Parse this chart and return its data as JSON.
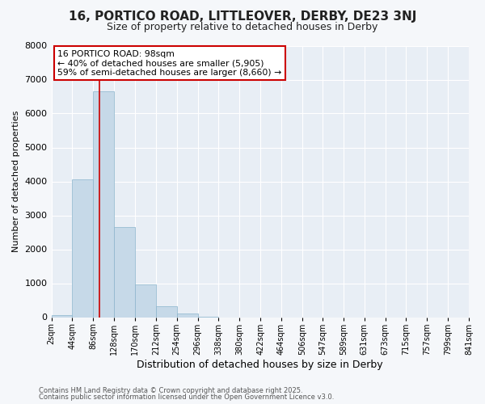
{
  "title": "16, PORTICO ROAD, LITTLEOVER, DERBY, DE23 3NJ",
  "subtitle": "Size of property relative to detached houses in Derby",
  "xlabel": "Distribution of detached houses by size in Derby",
  "ylabel": "Number of detached properties",
  "bar_color": "#c6d9e8",
  "bar_edge_color": "#8ab4cc",
  "plot_bg_color": "#e8eef5",
  "fig_bg_color": "#f5f7fa",
  "grid_color": "#ffffff",
  "bin_edges": [
    2,
    44,
    86,
    128,
    170,
    212,
    254,
    296,
    338,
    380,
    422,
    464,
    506,
    547,
    589,
    631,
    673,
    715,
    757,
    799,
    841
  ],
  "bin_labels": [
    "2sqm",
    "44sqm",
    "86sqm",
    "128sqm",
    "170sqm",
    "212sqm",
    "254sqm",
    "296sqm",
    "338sqm",
    "380sqm",
    "422sqm",
    "464sqm",
    "506sqm",
    "547sqm",
    "589sqm",
    "631sqm",
    "673sqm",
    "715sqm",
    "757sqm",
    "799sqm",
    "841sqm"
  ],
  "bar_heights": [
    55,
    4050,
    6650,
    2650,
    975,
    330,
    100,
    20,
    0,
    0,
    0,
    0,
    0,
    0,
    0,
    0,
    0,
    0,
    0,
    0
  ],
  "ylim": [
    0,
    8000
  ],
  "yticks": [
    0,
    1000,
    2000,
    3000,
    4000,
    5000,
    6000,
    7000,
    8000
  ],
  "property_line_x": 98,
  "property_line_color": "#cc0000",
  "annotation_title": "16 PORTICO ROAD: 98sqm",
  "annotation_line1": "← 40% of detached houses are smaller (5,905)",
  "annotation_line2": "59% of semi-detached houses are larger (8,660) →",
  "annotation_box_facecolor": "#ffffff",
  "annotation_box_edgecolor": "#cc0000",
  "footnote1": "Contains HM Land Registry data © Crown copyright and database right 2025.",
  "footnote2": "Contains public sector information licensed under the Open Government Licence v3.0.",
  "title_fontsize": 11,
  "subtitle_fontsize": 9,
  "ylabel_fontsize": 8,
  "xlabel_fontsize": 9,
  "ytick_fontsize": 8,
  "xtick_fontsize": 7
}
